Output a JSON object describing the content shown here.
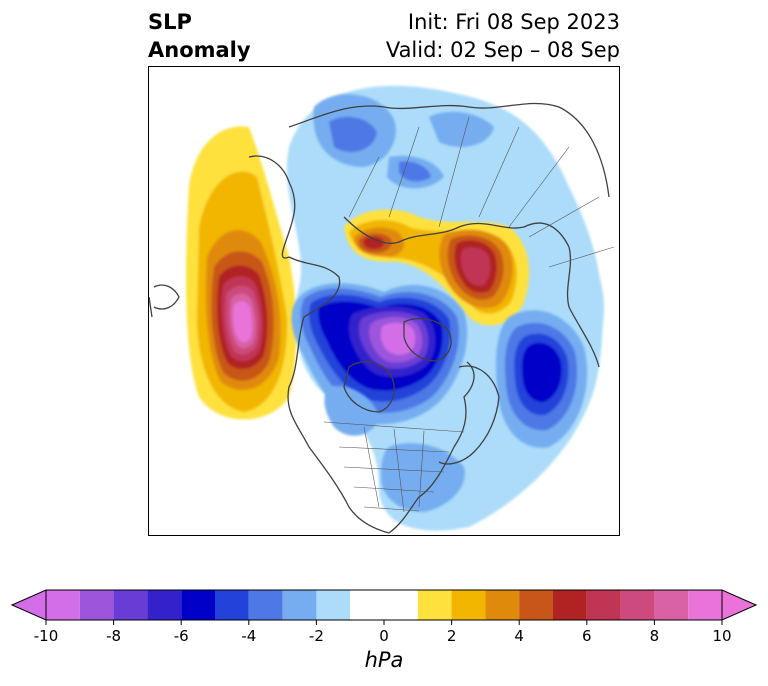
{
  "title": {
    "variable": "SLP",
    "kind": "Anomaly"
  },
  "init_label": "Init: Fri 08 Sep 2023",
  "valid_label": "Valid: 02 Sep – 08 Sep",
  "map": {
    "projection": "polar stereographic, North America / North Pacific",
    "anomaly_centers": [
      {
        "type": "positive",
        "region": "northeast Pacific (Gulf of Alaska)",
        "peak_hpa": 10
      },
      {
        "type": "positive",
        "region": "northern Siberia / Laptev Sea",
        "peak_hpa": 7
      },
      {
        "type": "positive",
        "region": "Kara Sea / northern Russia",
        "peak_hpa": 5
      },
      {
        "type": "negative",
        "region": "Canadian Arctic Archipelago / Baffin Bay",
        "peak_hpa": -10
      },
      {
        "type": "negative",
        "region": "North Atlantic south of Greenland",
        "peak_hpa": -6
      }
    ]
  },
  "colorbar": {
    "unit": "hPa",
    "extend": "both",
    "levels": [
      -10,
      -9,
      -8,
      -7,
      -6,
      -5,
      -4,
      -3,
      -2,
      -1,
      1,
      2,
      3,
      4,
      5,
      6,
      7,
      8,
      9,
      10
    ],
    "colors": [
      "#d36ee8",
      "#9d55dc",
      "#6a3cd6",
      "#3322cc",
      "#0000c8",
      "#2242da",
      "#4d78e6",
      "#75adf0",
      "#acdcfa",
      "#ffffff",
      "#fee13c",
      "#f2b600",
      "#e08a0c",
      "#c85618",
      "#b12322",
      "#c03454",
      "#cc4a7c",
      "#d862a4",
      "#e973d8"
    ],
    "tick_labels": [
      "-10",
      "-8",
      "-6",
      "-4",
      "-2",
      "0",
      "2",
      "4",
      "6",
      "8",
      "10"
    ]
  }
}
